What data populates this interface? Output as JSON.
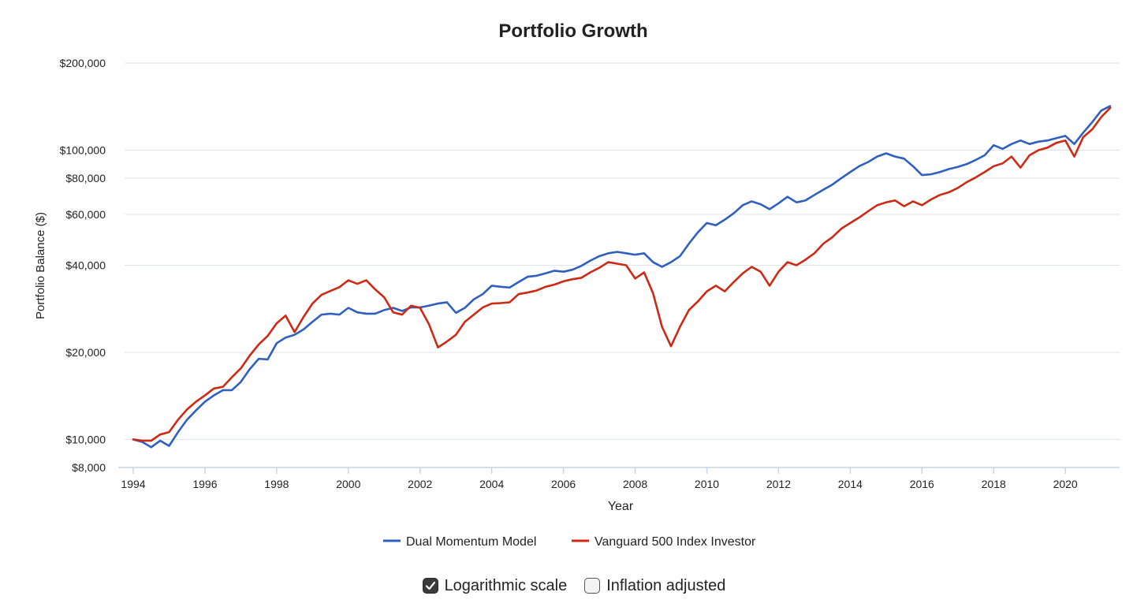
{
  "chart_data": {
    "type": "line",
    "title": "Portfolio Growth",
    "xlabel": "Year",
    "ylabel": "Portfolio Balance ($)",
    "yscale": "log",
    "ylim": [
      8000,
      200000
    ],
    "xlim": [
      1994,
      2021.25
    ],
    "yticks": [
      {
        "value": 8000,
        "label": "$8,000"
      },
      {
        "value": 10000,
        "label": "$10,000"
      },
      {
        "value": 20000,
        "label": "$20,000"
      },
      {
        "value": 40000,
        "label": "$40,000"
      },
      {
        "value": 60000,
        "label": "$60,000"
      },
      {
        "value": 80000,
        "label": "$80,000"
      },
      {
        "value": 100000,
        "label": "$100,000"
      },
      {
        "value": 200000,
        "label": "$200,000"
      }
    ],
    "xticks": [
      {
        "value": 1994,
        "label": "1994"
      },
      {
        "value": 1996,
        "label": "1996"
      },
      {
        "value": 1998,
        "label": "1998"
      },
      {
        "value": 2000,
        "label": "2000"
      },
      {
        "value": 2002,
        "label": "2002"
      },
      {
        "value": 2004,
        "label": "2004"
      },
      {
        "value": 2006,
        "label": "2006"
      },
      {
        "value": 2008,
        "label": "2008"
      },
      {
        "value": 2010,
        "label": "2010"
      },
      {
        "value": 2012,
        "label": "2012"
      },
      {
        "value": 2014,
        "label": "2014"
      },
      {
        "value": 2016,
        "label": "2016"
      },
      {
        "value": 2018,
        "label": "2018"
      },
      {
        "value": 2020,
        "label": "2020"
      }
    ],
    "grid": true,
    "legend_position": "bottom-center",
    "series": [
      {
        "name": "Dual Momentum Model",
        "color": "#2f5fbf",
        "x": [
          1994.0,
          1994.25,
          1994.5,
          1994.75,
          1995.0,
          1995.25,
          1995.5,
          1995.75,
          1996.0,
          1996.25,
          1996.5,
          1996.75,
          1997.0,
          1997.25,
          1997.5,
          1997.75,
          1998.0,
          1998.25,
          1998.5,
          1998.75,
          1999.0,
          1999.25,
          1999.5,
          1999.75,
          2000.0,
          2000.25,
          2000.5,
          2000.75,
          2001.0,
          2001.25,
          2001.5,
          2001.75,
          2002.0,
          2002.25,
          2002.5,
          2002.75,
          2003.0,
          2003.25,
          2003.5,
          2003.75,
          2004.0,
          2004.25,
          2004.5,
          2004.75,
          2005.0,
          2005.25,
          2005.5,
          2005.75,
          2006.0,
          2006.25,
          2006.5,
          2006.75,
          2007.0,
          2007.25,
          2007.5,
          2007.75,
          2008.0,
          2008.25,
          2008.5,
          2008.75,
          2009.0,
          2009.25,
          2009.5,
          2009.75,
          2010.0,
          2010.25,
          2010.5,
          2010.75,
          2011.0,
          2011.25,
          2011.5,
          2011.75,
          2012.0,
          2012.25,
          2012.5,
          2012.75,
          2013.0,
          2013.25,
          2013.5,
          2013.75,
          2014.0,
          2014.25,
          2014.5,
          2014.75,
          2015.0,
          2015.25,
          2015.5,
          2015.75,
          2016.0,
          2016.25,
          2016.5,
          2016.75,
          2017.0,
          2017.25,
          2017.5,
          2017.75,
          2018.0,
          2018.25,
          2018.5,
          2018.75,
          2019.0,
          2019.25,
          2019.5,
          2019.75,
          2020.0,
          2020.25,
          2020.5,
          2020.75,
          2021.0,
          2021.25
        ],
        "values": [
          10000,
          9800,
          9400,
          9900,
          9500,
          10600,
          11700,
          12600,
          13500,
          14200,
          14800,
          14800,
          15800,
          17500,
          19000,
          18900,
          21500,
          22500,
          23000,
          24000,
          25500,
          27000,
          27200,
          27000,
          28500,
          27500,
          27200,
          27200,
          28000,
          28500,
          27800,
          28600,
          28600,
          29000,
          29500,
          29800,
          27400,
          28500,
          30500,
          31800,
          34000,
          33700,
          33500,
          35000,
          36500,
          36800,
          37500,
          38300,
          38000,
          38600,
          39800,
          41500,
          43000,
          44000,
          44500,
          44000,
          43500,
          44000,
          41000,
          39500,
          41000,
          43000,
          47500,
          52000,
          56000,
          55000,
          57500,
          60500,
          64500,
          66500,
          65000,
          62500,
          65500,
          69000,
          66000,
          67000,
          70000,
          73000,
          76000,
          80000,
          84000,
          88000,
          91000,
          95000,
          97500,
          95000,
          93500,
          88000,
          82000,
          82500,
          84000,
          86000,
          87500,
          89500,
          92500,
          96000,
          104000,
          101000,
          105000,
          108000,
          105000,
          107000,
          108000,
          110000,
          112000,
          105000,
          115000,
          125000,
          137000,
          142000
        ]
      },
      {
        "name": "Vanguard 500 Index Investor",
        "color": "#cc2a14",
        "x": [
          1994.0,
          1994.25,
          1994.5,
          1994.75,
          1995.0,
          1995.25,
          1995.5,
          1995.75,
          1996.0,
          1996.25,
          1996.5,
          1996.75,
          1997.0,
          1997.25,
          1997.5,
          1997.75,
          1998.0,
          1998.25,
          1998.5,
          1998.75,
          1999.0,
          1999.25,
          1999.5,
          1999.75,
          2000.0,
          2000.25,
          2000.5,
          2000.75,
          2001.0,
          2001.25,
          2001.5,
          2001.75,
          2002.0,
          2002.25,
          2002.5,
          2002.75,
          2003.0,
          2003.25,
          2003.5,
          2003.75,
          2004.0,
          2004.25,
          2004.5,
          2004.75,
          2005.0,
          2005.25,
          2005.5,
          2005.75,
          2006.0,
          2006.25,
          2006.5,
          2006.75,
          2007.0,
          2007.25,
          2007.5,
          2007.75,
          2008.0,
          2008.25,
          2008.5,
          2008.75,
          2009.0,
          2009.25,
          2009.5,
          2009.75,
          2010.0,
          2010.25,
          2010.5,
          2010.75,
          2011.0,
          2011.25,
          2011.5,
          2011.75,
          2012.0,
          2012.25,
          2012.5,
          2012.75,
          2013.0,
          2013.25,
          2013.5,
          2013.75,
          2014.0,
          2014.25,
          2014.5,
          2014.75,
          2015.0,
          2015.25,
          2015.5,
          2015.75,
          2016.0,
          2016.25,
          2016.5,
          2016.75,
          2017.0,
          2017.25,
          2017.5,
          2017.75,
          2018.0,
          2018.25,
          2018.5,
          2018.75,
          2019.0,
          2019.25,
          2019.5,
          2019.75,
          2020.0,
          2020.25,
          2020.5,
          2020.75,
          2021.0,
          2021.25
        ],
        "values": [
          10000,
          9900,
          9900,
          10400,
          10600,
          11700,
          12700,
          13500,
          14200,
          15000,
          15200,
          16400,
          17600,
          19500,
          21300,
          22800,
          25200,
          26800,
          23500,
          26500,
          29500,
          31600,
          32600,
          33600,
          35500,
          34500,
          35500,
          33000,
          31000,
          27500,
          27000,
          29000,
          28500,
          25000,
          20800,
          21800,
          23000,
          25500,
          27000,
          28600,
          29500,
          29600,
          29800,
          31800,
          32200,
          32700,
          33700,
          34300,
          35200,
          35800,
          36200,
          37800,
          39200,
          41000,
          40500,
          40000,
          36000,
          37800,
          32000,
          24500,
          21000,
          24500,
          28000,
          30000,
          32500,
          34000,
          32500,
          35000,
          37500,
          39500,
          38000,
          34000,
          38000,
          41000,
          40000,
          41800,
          44000,
          47500,
          50000,
          53500,
          56000,
          58500,
          61500,
          64500,
          66000,
          67000,
          64000,
          66500,
          64500,
          67500,
          70000,
          71500,
          74000,
          77500,
          80500,
          84000,
          88000,
          90000,
          95000,
          87000,
          96000,
          100000,
          102000,
          106000,
          108000,
          95000,
          111000,
          118000,
          130000,
          140000
        ]
      }
    ]
  },
  "controls": {
    "log_scale": {
      "label": "Logarithmic scale",
      "checked": true
    },
    "inflation": {
      "label": "Inflation adjusted",
      "checked": false
    }
  }
}
